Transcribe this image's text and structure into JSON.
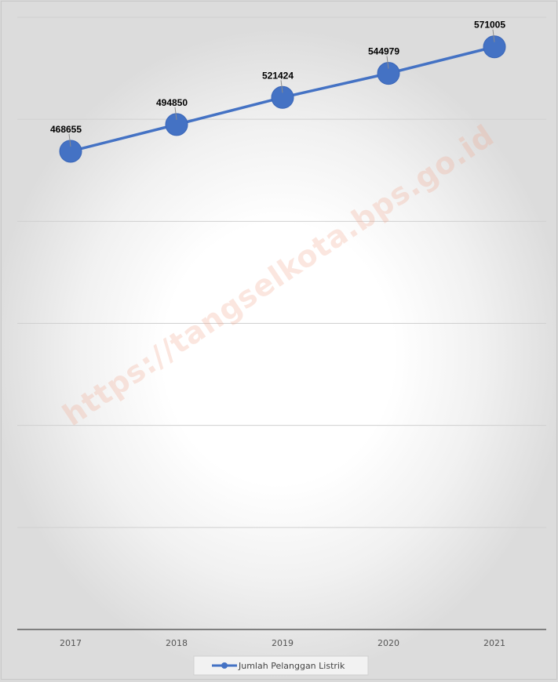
{
  "chart_data": {
    "type": "line",
    "categories": [
      "2017",
      "2018",
      "2019",
      "2020",
      "2021"
    ],
    "series": [
      {
        "name": "Jumlah Pelanggan Listrik",
        "values": [
          468655,
          494850,
          521424,
          544979,
          571005
        ],
        "color": "#4472c4"
      }
    ],
    "data_labels": [
      "468655",
      "494850",
      "521424",
      "544979",
      "571005"
    ],
    "ylim": [
      0,
      600000
    ],
    "gridlines": true,
    "y_tick_labels_visible": false,
    "legend": "bottom"
  },
  "watermark": "https://tangselkota.bps.go.id"
}
